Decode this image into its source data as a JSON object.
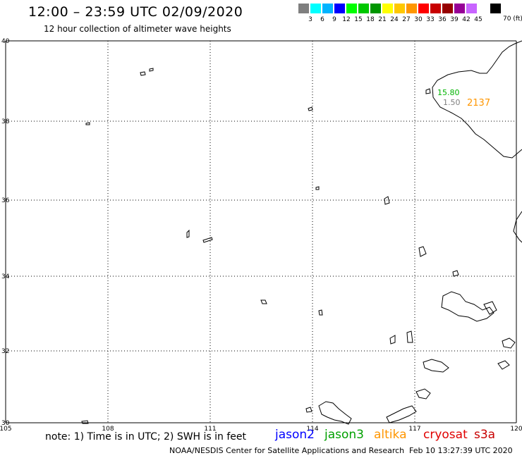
{
  "header": {
    "title": "12:00 – 23:59 UTC 02/09/2020",
    "subtitle": "12 hour collection of altimeter wave heights"
  },
  "legend": {
    "unit": "70 (ft)",
    "swatches": [
      {
        "label": "3",
        "color": "#7f7f7f"
      },
      {
        "label": "6",
        "color": "#00ffff"
      },
      {
        "label": "9",
        "color": "#00b4ff"
      },
      {
        "label": "12",
        "color": "#0000ff"
      },
      {
        "label": "15",
        "color": "#00ff00"
      },
      {
        "label": "18",
        "color": "#00c800"
      },
      {
        "label": "21",
        "color": "#009600"
      },
      {
        "label": "24",
        "color": "#ffff00"
      },
      {
        "label": "27",
        "color": "#ffc800"
      },
      {
        "label": "30",
        "color": "#ff9600"
      },
      {
        "label": "33",
        "color": "#ff0000"
      },
      {
        "label": "36",
        "color": "#c80000"
      },
      {
        "label": "39",
        "color": "#960000"
      },
      {
        "label": "42",
        "color": "#960096"
      },
      {
        "label": "45",
        "color": "#c864ff"
      },
      {
        "label": "",
        "color": "#ffffff"
      },
      {
        "label": "",
        "color": "#000000"
      }
    ]
  },
  "map": {
    "lon_labels": [
      "105",
      "108",
      "111",
      "114",
      "117",
      "120"
    ],
    "lat_labels": [
      "40",
      "38",
      "36",
      "34",
      "32",
      "30"
    ],
    "annotations": [
      {
        "text": "15.80",
        "color": "#00b400"
      },
      {
        "text": "1.50",
        "color": "#7f7f7f"
      },
      {
        "text": "2137",
        "color": "#ff9600"
      }
    ]
  },
  "notes": {
    "note": "note:  1) Time is in UTC;  2) SWH is in feet",
    "satellites": [
      {
        "name": "jason2",
        "color": "#0000ff"
      },
      {
        "name": "jason3",
        "color": "#00a000"
      },
      {
        "name": "altika",
        "color": "#ff9600"
      },
      {
        "name": "cryosat",
        "color": "#e00000"
      },
      {
        "name": "s3a",
        "color": "#c80000"
      }
    ],
    "credit": "NOAA/NESDIS Center for Satellite Applications and Research",
    "generated": "Feb 10 13:27:39 UTC 2020"
  }
}
